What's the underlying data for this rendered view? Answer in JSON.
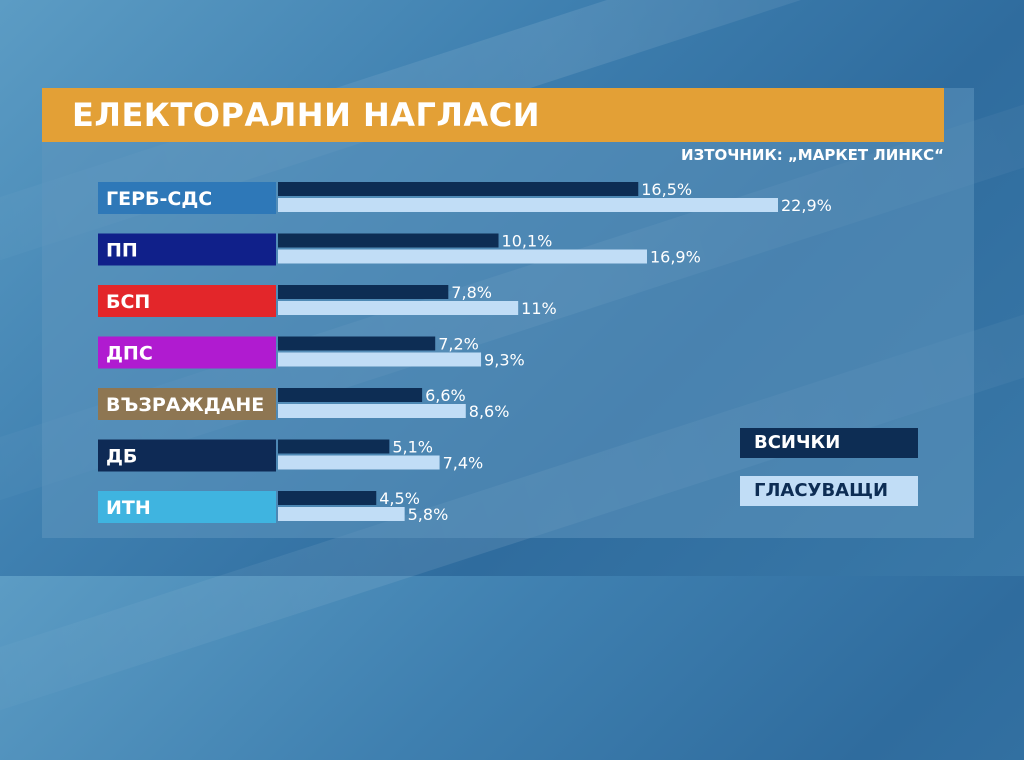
{
  "title": "ЕЛЕКТОРАЛНИ НАГЛАСИ",
  "source": "ИЗТОЧНИК: „МАРКЕТ ЛИНКС“",
  "chart_data": {
    "type": "bar",
    "orientation": "horizontal",
    "title": "ЕЛЕКТОРАЛНИ НАГЛАСИ",
    "categories": [
      "ГЕРБ-СДС",
      "ПП",
      "БСП",
      "ДПС",
      "ВЪЗРАЖДАНЕ",
      "ДБ",
      "ИТН"
    ],
    "category_colors": [
      "#2e78b8",
      "#10208a",
      "#e3262a",
      "#b01bd0",
      "#8e7652",
      "#0e2a55",
      "#3fb4e0"
    ],
    "series": [
      {
        "name": "ВСИЧКИ",
        "color": "#0d2d54",
        "values": [
          16.5,
          10.1,
          7.8,
          7.2,
          6.6,
          5.1,
          4.5
        ],
        "labels": [
          "16,5%",
          "10,1%",
          "7,8%",
          "7,2%",
          "6,6%",
          "5,1%",
          "4,5%"
        ]
      },
      {
        "name": "ГЛАСУВАЩИ",
        "color": "#c1ddf6",
        "values": [
          22.9,
          16.9,
          11,
          9.3,
          8.6,
          7.4,
          5.8
        ],
        "labels": [
          "22,9%",
          "16,9%",
          "11%",
          "9,3%",
          "8,6%",
          "7,4%",
          "5,8%"
        ]
      }
    ],
    "xlim": [
      0,
      22.9
    ],
    "grid": false,
    "legend_position": "bottom-right"
  }
}
